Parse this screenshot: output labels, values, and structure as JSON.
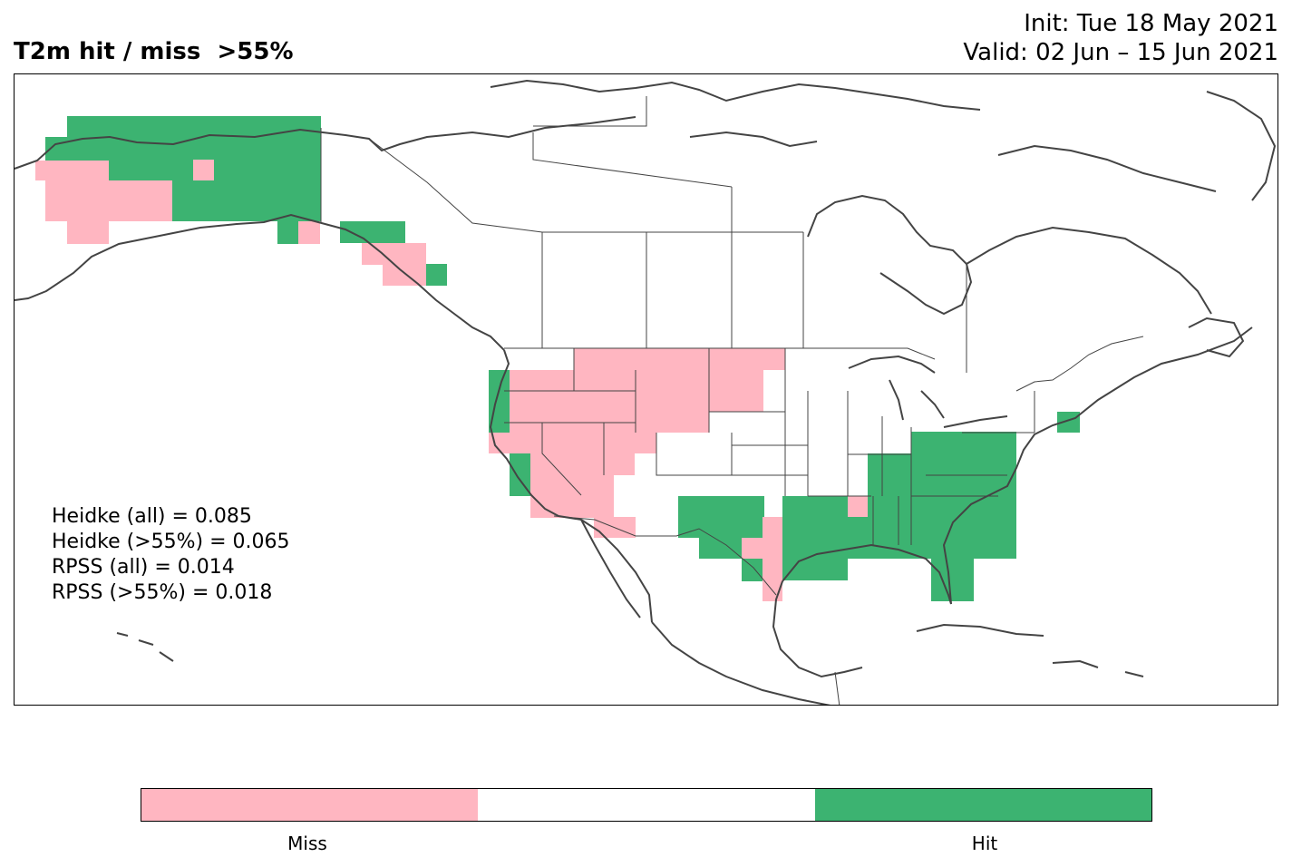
{
  "title": "T2m hit / miss  >55%",
  "init": "Init: Tue 18 May 2021",
  "valid": "Valid: 02 Jun – 15 Jun 2021",
  "stats": [
    "Heidke (all) = 0.085",
    "Heidke (>55%) = 0.065",
    "RPSS (all) = 0.014",
    "RPSS (>55%) = 0.018"
  ],
  "legend": {
    "miss_label": "Miss",
    "hit_label": "Hit",
    "miss_color": "#ffb6c1",
    "neutral_color": "#ffffff",
    "hit_color": "#3cb371"
  },
  "map": {
    "projection": "Plate Carree",
    "extent_lon": [
      -170,
      -50
    ],
    "extent_lat": [
      10,
      75
    ],
    "coastline_color": "#444444",
    "border_color": "#444444"
  }
}
